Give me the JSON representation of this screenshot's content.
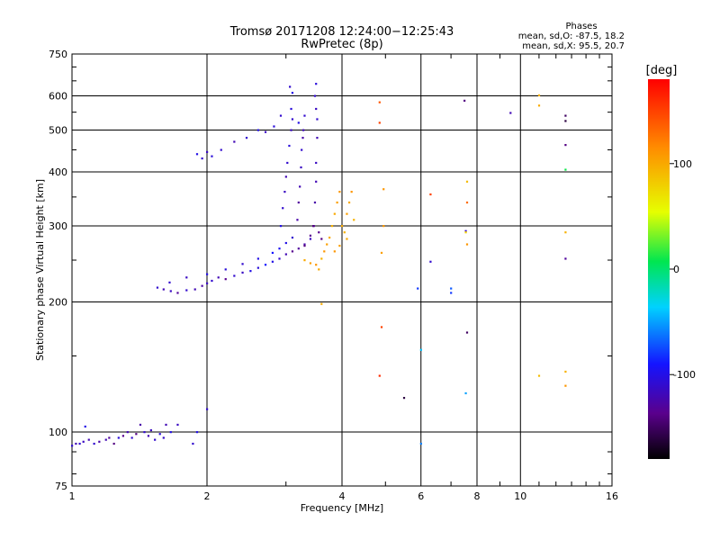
{
  "header": {
    "title": "Tromsø 20171208 12:24:00−12:25:43",
    "subtitle": "RwPretec (8p)",
    "stats_title": "Phases",
    "stats_o": "mean, sd,O: -87.5, 18.2",
    "stats_x": "mean, sd,X:  95.5, 20.7"
  },
  "chart_data": {
    "type": "scatter",
    "title": "Tromsø 20171208 12:24:00−12:25:43",
    "subtitle": "RwPretec (8p)",
    "xlabel": "Frequency [MHz]",
    "ylabel": "Stationary phase Virtual Height [km]",
    "x_scale": "log",
    "y_scale": "log",
    "xlim": [
      1,
      16
    ],
    "ylim": [
      75,
      750
    ],
    "x_ticks": [
      1,
      2,
      4,
      6,
      8,
      10,
      16
    ],
    "y_ticks": [
      75,
      100,
      200,
      300,
      400,
      500,
      600,
      750
    ],
    "grid": true,
    "colorbar": {
      "label": "[deg]",
      "range": [
        -180,
        180
      ],
      "ticks": [
        -100,
        0,
        100
      ]
    },
    "series": [
      {
        "name": "Phases",
        "points": [
          [
            1.0,
            93,
            -110
          ],
          [
            1.02,
            94,
            -120
          ],
          [
            1.04,
            94,
            -110
          ],
          [
            1.06,
            95,
            -115
          ],
          [
            1.07,
            103,
            -100
          ],
          [
            1.09,
            96,
            -120
          ],
          [
            1.12,
            94,
            -110
          ],
          [
            1.15,
            95,
            -125
          ],
          [
            1.19,
            96,
            -120
          ],
          [
            1.21,
            97,
            -130
          ],
          [
            1.24,
            94,
            -140
          ],
          [
            1.27,
            97,
            -105
          ],
          [
            1.3,
            98,
            -135
          ],
          [
            1.33,
            100,
            -120
          ],
          [
            1.36,
            97,
            -110
          ],
          [
            1.39,
            99,
            -140
          ],
          [
            1.42,
            104,
            -125
          ],
          [
            1.45,
            100,
            -110
          ],
          [
            1.48,
            98,
            -120
          ],
          [
            1.5,
            101,
            -115
          ],
          [
            1.53,
            96,
            -110
          ],
          [
            1.57,
            99,
            -105
          ],
          [
            1.6,
            97,
            -112
          ],
          [
            1.62,
            104,
            -120
          ],
          [
            1.66,
            100,
            -100
          ],
          [
            1.72,
            104,
            -115
          ],
          [
            1.86,
            94,
            -110
          ],
          [
            1.9,
            100,
            -100
          ],
          [
            2.0,
            113,
            -110
          ],
          [
            1.55,
            216,
            -110
          ],
          [
            1.6,
            214,
            -120
          ],
          [
            1.66,
            212,
            -115
          ],
          [
            1.72,
            210,
            -130
          ],
          [
            1.8,
            213,
            -110
          ],
          [
            1.88,
            214,
            -120
          ],
          [
            1.95,
            218,
            -125
          ],
          [
            2.0,
            221,
            -115
          ],
          [
            2.05,
            224,
            -110
          ],
          [
            2.12,
            228,
            -120
          ],
          [
            2.2,
            226,
            -135
          ],
          [
            2.3,
            230,
            -110
          ],
          [
            2.4,
            234,
            -115
          ],
          [
            2.5,
            236,
            -100
          ],
          [
            2.6,
            240,
            -105
          ],
          [
            2.7,
            244,
            -90
          ],
          [
            2.8,
            248,
            -100
          ],
          [
            2.9,
            252,
            -110
          ],
          [
            3.0,
            258,
            -120
          ],
          [
            3.1,
            262,
            -135
          ],
          [
            3.2,
            266,
            -130
          ],
          [
            3.3,
            272,
            -125
          ],
          [
            3.4,
            280,
            -115
          ],
          [
            1.65,
            222,
            -110
          ],
          [
            1.8,
            228,
            -115
          ],
          [
            2.0,
            232,
            -100
          ],
          [
            2.2,
            238,
            -105
          ],
          [
            2.4,
            245,
            -110
          ],
          [
            2.6,
            252,
            -100
          ],
          [
            2.8,
            260,
            -90
          ],
          [
            2.9,
            266,
            -95
          ],
          [
            3.0,
            274,
            -100
          ],
          [
            3.1,
            282,
            -110
          ],
          [
            2.92,
            300,
            -100
          ],
          [
            2.95,
            330,
            -110
          ],
          [
            2.98,
            360,
            -115
          ],
          [
            3.0,
            390,
            -120
          ],
          [
            3.02,
            420,
            -110
          ],
          [
            3.05,
            460,
            -105
          ],
          [
            3.08,
            500,
            -115
          ],
          [
            3.1,
            530,
            -110
          ],
          [
            3.08,
            560,
            -105
          ],
          [
            3.06,
            630,
            -110
          ],
          [
            3.1,
            610,
            -100
          ],
          [
            3.18,
            310,
            -125
          ],
          [
            3.2,
            340,
            -130
          ],
          [
            3.22,
            370,
            -120
          ],
          [
            3.24,
            410,
            -115
          ],
          [
            3.25,
            450,
            -110
          ],
          [
            3.28,
            500,
            -118
          ],
          [
            3.3,
            540,
            -110
          ],
          [
            3.2,
            520,
            -100
          ],
          [
            3.27,
            480,
            -125
          ],
          [
            3.46,
            300,
            -130
          ],
          [
            3.48,
            340,
            -125
          ],
          [
            3.5,
            380,
            -120
          ],
          [
            3.5,
            420,
            -115
          ],
          [
            3.52,
            480,
            -120
          ],
          [
            3.52,
            530,
            -110
          ],
          [
            3.5,
            560,
            -115
          ],
          [
            3.48,
            600,
            -110
          ],
          [
            3.5,
            640,
            -105
          ],
          [
            1.9,
            440,
            -100
          ],
          [
            1.95,
            430,
            -110
          ],
          [
            2.0,
            445,
            -115
          ],
          [
            2.05,
            435,
            -105
          ],
          [
            2.15,
            450,
            -110
          ],
          [
            2.3,
            470,
            -120
          ],
          [
            2.45,
            480,
            -110
          ],
          [
            2.6,
            500,
            -100
          ],
          [
            2.7,
            495,
            -115
          ],
          [
            2.82,
            510,
            -105
          ],
          [
            2.92,
            540,
            -110
          ],
          [
            3.3,
            270,
            -140
          ],
          [
            3.4,
            285,
            -135
          ],
          [
            3.45,
            300,
            -140
          ],
          [
            3.55,
            290,
            -135
          ],
          [
            3.6,
            280,
            -140
          ],
          [
            3.3,
            250,
            100
          ],
          [
            3.4,
            246,
            105
          ],
          [
            3.5,
            244,
            110
          ],
          [
            3.55,
            238,
            100
          ],
          [
            3.6,
            252,
            95
          ],
          [
            3.65,
            262,
            110
          ],
          [
            3.7,
            272,
            105
          ],
          [
            3.75,
            282,
            100
          ],
          [
            3.8,
            300,
            95
          ],
          [
            3.85,
            320,
            100
          ],
          [
            3.9,
            340,
            105
          ],
          [
            3.95,
            360,
            110
          ],
          [
            4.0,
            300,
            100
          ],
          [
            4.05,
            290,
            95
          ],
          [
            4.1,
            320,
            105
          ],
          [
            4.15,
            340,
            100
          ],
          [
            4.2,
            360,
            110
          ],
          [
            4.25,
            310,
            95
          ],
          [
            4.1,
            280,
            100
          ],
          [
            3.95,
            270,
            105
          ],
          [
            3.85,
            262,
            110
          ],
          [
            3.6,
            198,
            100
          ],
          [
            4.85,
            580,
            140
          ],
          [
            4.85,
            520,
            150
          ],
          [
            4.95,
            365,
            110
          ],
          [
            4.95,
            300,
            110
          ],
          [
            4.9,
            260,
            105
          ],
          [
            4.9,
            175,
            150
          ],
          [
            4.85,
            135,
            160
          ],
          [
            5.5,
            120,
            -160
          ],
          [
            5.9,
            215,
            -80
          ],
          [
            6.0,
            155,
            -40
          ],
          [
            6.0,
            94,
            -60
          ],
          [
            6.3,
            355,
            150
          ],
          [
            6.3,
            248,
            -110
          ],
          [
            7.0,
            215,
            -70
          ],
          [
            7.0,
            210,
            -80
          ],
          [
            7.5,
            585,
            -140
          ],
          [
            7.6,
            380,
            90
          ],
          [
            7.6,
            340,
            130
          ],
          [
            7.55,
            292,
            -110
          ],
          [
            7.55,
            290,
            80
          ],
          [
            7.6,
            272,
            110
          ],
          [
            7.6,
            170,
            -150
          ],
          [
            7.55,
            123,
            -50
          ],
          [
            9.5,
            548,
            -120
          ],
          [
            11.0,
            602,
            95
          ],
          [
            11.0,
            570,
            100
          ],
          [
            11.0,
            135,
            90
          ],
          [
            12.6,
            540,
            -150
          ],
          [
            12.6,
            525,
            -160
          ],
          [
            12.6,
            462,
            -140
          ],
          [
            12.6,
            405,
            10
          ],
          [
            12.6,
            290,
            95
          ],
          [
            12.6,
            252,
            -130
          ],
          [
            12.6,
            138,
            95
          ],
          [
            12.6,
            128,
            110
          ]
        ]
      }
    ]
  }
}
